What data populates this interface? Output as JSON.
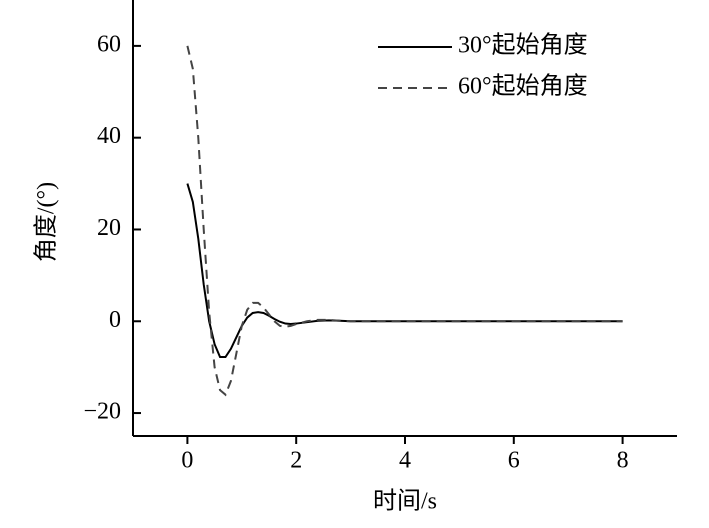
{
  "chart_data": {
    "type": "line",
    "x_label": "时间/s",
    "y_label": "角度/(°)",
    "x": [
      0,
      0.1,
      0.2,
      0.3,
      0.4,
      0.5,
      0.6,
      0.7,
      0.8,
      0.9,
      1.0,
      1.1,
      1.2,
      1.3,
      1.4,
      1.5,
      1.6,
      1.7,
      1.8,
      1.9,
      2.0,
      2.2,
      2.4,
      2.6,
      2.8,
      3.0,
      4,
      5,
      6,
      7,
      8
    ],
    "series": [
      {
        "name": "30°起始角度",
        "color": "#000000",
        "dash": "solid",
        "values": [
          30,
          26,
          18,
          8,
          0,
          -5,
          -7.8,
          -7.8,
          -6,
          -3.5,
          -1,
          0.8,
          1.8,
          2,
          1.8,
          1.2,
          0.5,
          -0.1,
          -0.5,
          -0.6,
          -0.5,
          -0.2,
          0.1,
          0.2,
          0.1,
          0,
          0,
          0,
          0,
          0,
          0
        ]
      },
      {
        "name": "60°起始角度",
        "color": "#444444",
        "dash": "dashed",
        "values": [
          60,
          55,
          40,
          20,
          2,
          -10,
          -15,
          -16,
          -13,
          -7,
          -1,
          2.5,
          4,
          4,
          3,
          1.5,
          0,
          -1,
          -1.2,
          -1,
          -0.6,
          0,
          0.3,
          0.3,
          0.1,
          0,
          0,
          0,
          0,
          0,
          0
        ]
      }
    ],
    "xlim": [
      -1,
      9
    ],
    "xticks": [
      0,
      2,
      4,
      6,
      8
    ],
    "ylim": [
      -25,
      70
    ],
    "yticks": [
      {
        "value": -20,
        "label": "−20"
      },
      0,
      20,
      40,
      60
    ],
    "grid": false,
    "legend": "upper right"
  }
}
